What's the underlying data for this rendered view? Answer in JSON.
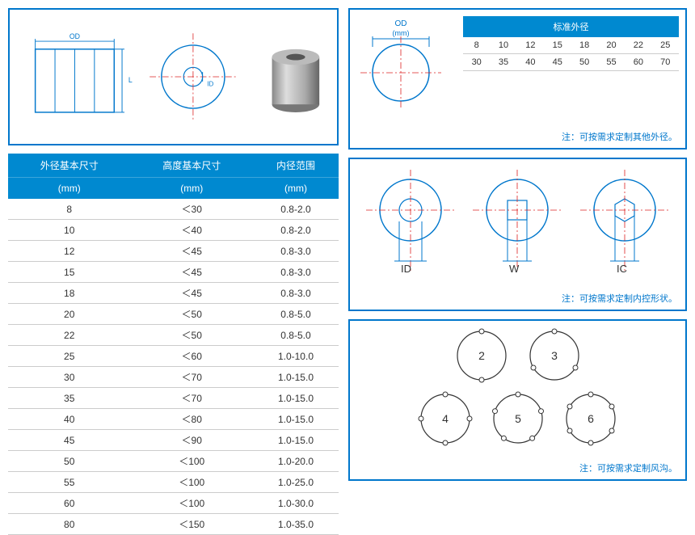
{
  "colors": {
    "border": "#0077cc",
    "header_bg": "#0089d0",
    "header_text": "#ffffff",
    "row_border": "#cccccc",
    "text": "#333333",
    "note_color": "#0077cc",
    "centerline": "#d22",
    "diagram_stroke": "#0077cc"
  },
  "spec_table": {
    "headers_row1": [
      "外径基本尺寸",
      "高度基本尺寸",
      "内径范围"
    ],
    "headers_row2": [
      "(mm)",
      "(mm)",
      "(mm)"
    ],
    "rows": [
      [
        "8",
        "＜30",
        "0.8-2.0"
      ],
      [
        "10",
        "＜40",
        "0.8-2.0"
      ],
      [
        "12",
        "＜45",
        "0.8-3.0"
      ],
      [
        "15",
        "＜45",
        "0.8-3.0"
      ],
      [
        "18",
        "＜45",
        "0.8-3.0"
      ],
      [
        "20",
        "＜50",
        "0.8-5.0"
      ],
      [
        "22",
        "＜50",
        "0.8-5.0"
      ],
      [
        "25",
        "＜60",
        "1.0-10.0"
      ],
      [
        "30",
        "＜70",
        "1.0-15.0"
      ],
      [
        "35",
        "＜70",
        "1.0-15.0"
      ],
      [
        "40",
        "＜80",
        "1.0-15.0"
      ],
      [
        "45",
        "＜90",
        "1.0-15.0"
      ],
      [
        "50",
        "＜100",
        "1.0-20.0"
      ],
      [
        "55",
        "＜100",
        "1.0-25.0"
      ],
      [
        "60",
        "＜100",
        "1.0-30.0"
      ],
      [
        "80",
        "＜150",
        "1.0-35.0"
      ]
    ]
  },
  "od_panel": {
    "label_top": "OD",
    "label_unit": "(mm)",
    "table_header": "标准外径",
    "rows": [
      [
        "8",
        "10",
        "12",
        "15",
        "18",
        "20",
        "22",
        "25"
      ],
      [
        "30",
        "35",
        "40",
        "45",
        "50",
        "55",
        "60",
        "70"
      ]
    ],
    "note": "注：可按需求定制其他外径。"
  },
  "shape_panel": {
    "labels": [
      "ID",
      "W",
      "IC"
    ],
    "note": "注：可按需求定制内控形状。"
  },
  "groove_panel": {
    "row1": [
      "2",
      "3"
    ],
    "row2": [
      "4",
      "5",
      "6"
    ],
    "note": "注：可按需求定制风沟。"
  },
  "top_diagram": {
    "od_label": "OD",
    "l_label": "L",
    "id_label": "ID"
  }
}
